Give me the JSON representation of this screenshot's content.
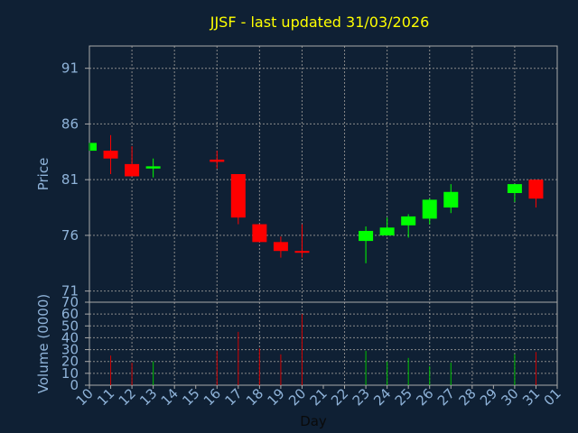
{
  "chart_data": {
    "type": "candlestick",
    "title": "JJSF - last updated 31/03/2026",
    "xlabel": "Day",
    "price_panel": {
      "ylabel": "Price",
      "ylim": [
        70,
        93
      ],
      "yticks": [
        71,
        76,
        81,
        86,
        91
      ]
    },
    "volume_panel": {
      "ylabel": "Volume (0000)",
      "ylim": [
        0,
        70
      ],
      "yticks": [
        0,
        10,
        20,
        30,
        40,
        50,
        60,
        70
      ]
    },
    "grid": true,
    "x_range": [
      10,
      32
    ],
    "x_tick_labels": [
      "10",
      "11",
      "12",
      "13",
      "14",
      "15",
      "16",
      "17",
      "18",
      "19",
      "20",
      "21",
      "22",
      "23",
      "24",
      "25",
      "26",
      "27",
      "28",
      "29",
      "30",
      "31",
      "01"
    ],
    "colors": {
      "background": "#0f2034",
      "title": "#ffff00",
      "axis_text": "#8fb3d9",
      "axis_line": "#aaaaaa",
      "up": "#00ff00",
      "down": "#ff0000",
      "volume_up": "#00c000",
      "volume_down": "#d00000"
    },
    "candles": [
      {
        "day": 10,
        "open": 83.6,
        "close": 84.3,
        "high": 84.3,
        "low": 83.6,
        "volume": 0
      },
      {
        "day": 11,
        "open": 83.6,
        "close": 82.9,
        "high": 85.0,
        "low": 81.5,
        "volume": 25
      },
      {
        "day": 12,
        "open": 82.4,
        "close": 81.3,
        "high": 84.0,
        "low": 81.3,
        "volume": 19
      },
      {
        "day": 13,
        "open": 82.0,
        "close": 82.2,
        "high": 82.9,
        "low": 81.2,
        "volume": 20
      },
      {
        "day": 16,
        "open": 82.8,
        "close": 82.6,
        "high": 83.6,
        "low": 82.0,
        "volume": 29
      },
      {
        "day": 17,
        "open": 81.5,
        "close": 77.6,
        "high": 81.5,
        "low": 77.0,
        "volume": 45
      },
      {
        "day": 18,
        "open": 77.0,
        "close": 75.4,
        "high": 77.0,
        "low": 75.4,
        "volume": 31
      },
      {
        "day": 19,
        "open": 75.4,
        "close": 74.6,
        "high": 75.9,
        "low": 74.0,
        "volume": 26
      },
      {
        "day": 20,
        "open": 74.6,
        "close": 74.5,
        "high": 77.0,
        "low": 74.0,
        "volume": 60
      },
      {
        "day": 23,
        "open": 75.5,
        "close": 76.4,
        "high": 76.8,
        "low": 73.5,
        "volume": 29
      },
      {
        "day": 24,
        "open": 76.0,
        "close": 76.7,
        "high": 77.6,
        "low": 76.0,
        "volume": 20
      },
      {
        "day": 25,
        "open": 76.9,
        "close": 77.7,
        "high": 77.9,
        "low": 75.8,
        "volume": 23
      },
      {
        "day": 26,
        "open": 77.5,
        "close": 79.2,
        "high": 79.3,
        "low": 77.0,
        "volume": 16
      },
      {
        "day": 27,
        "open": 78.5,
        "close": 79.9,
        "high": 80.6,
        "low": 78.0,
        "volume": 19
      },
      {
        "day": 30,
        "open": 79.8,
        "close": 80.6,
        "high": 80.6,
        "low": 79.0,
        "volume": 26
      },
      {
        "day": 31,
        "open": 81.0,
        "close": 79.3,
        "high": 81.0,
        "low": 78.5,
        "volume": 28
      }
    ]
  }
}
